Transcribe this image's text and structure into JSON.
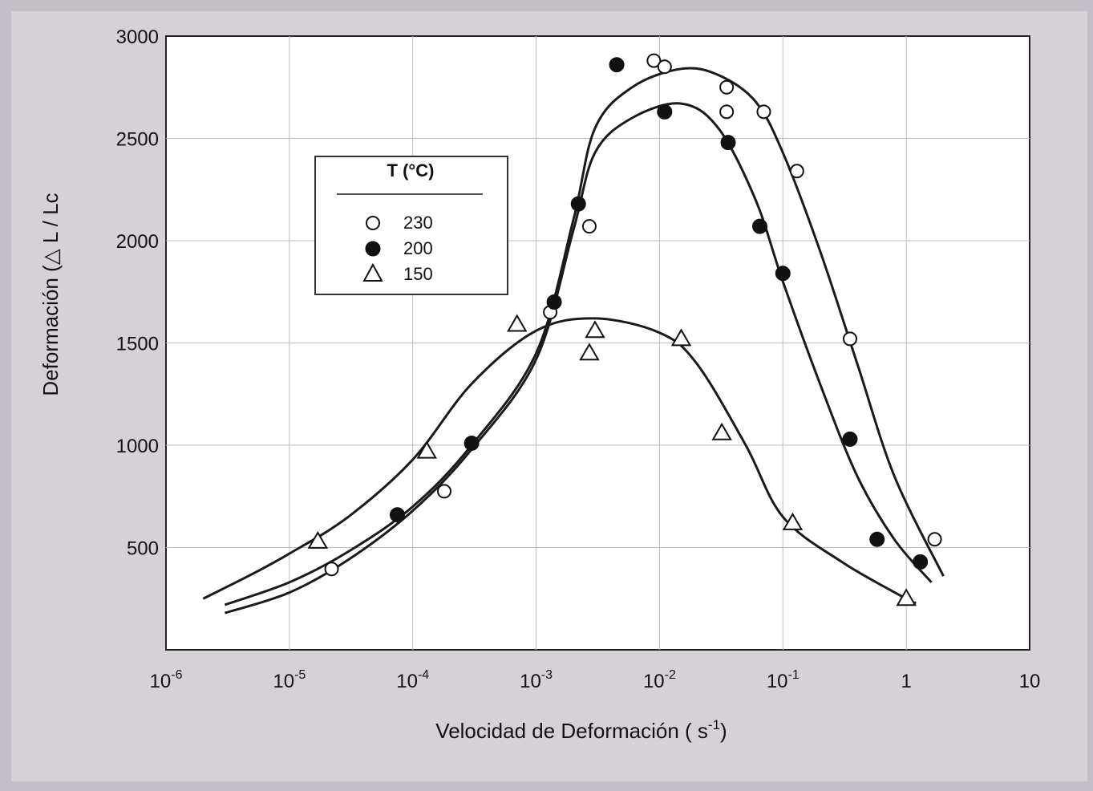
{
  "chart_data": {
    "type": "scatter",
    "title": "",
    "xlabel": "Velocidad de Deformación ( s",
    "xlabel_sup": "-1",
    "xlabel_tail": ")",
    "ylabel": "Deformación (△ L / Lc",
    "xscale": "log",
    "xlim": [
      1e-06,
      10
    ],
    "ylim": [
      0,
      3000
    ],
    "grid": true,
    "x_ticks": [
      {
        "value": 1e-06,
        "base": "10",
        "exp": "-6"
      },
      {
        "value": 1e-05,
        "base": "10",
        "exp": "-5"
      },
      {
        "value": 0.0001,
        "base": "10",
        "exp": "-4"
      },
      {
        "value": 0.001,
        "base": "10",
        "exp": "-3"
      },
      {
        "value": 0.01,
        "base": "10",
        "exp": "-2"
      },
      {
        "value": 0.1,
        "base": "10",
        "exp": "-1"
      },
      {
        "value": 1,
        "base": "1",
        "exp": ""
      },
      {
        "value": 10,
        "base": "10",
        "exp": ""
      }
    ],
    "y_ticks": [
      {
        "value": 500,
        "label": "500"
      },
      {
        "value": 1000,
        "label": "1000"
      },
      {
        "value": 1500,
        "label": "1500"
      },
      {
        "value": 2000,
        "label": "2000"
      },
      {
        "value": 2500,
        "label": "2500"
      },
      {
        "value": 3000,
        "label": "3000"
      }
    ],
    "legend": {
      "title": "T (°C)",
      "position": "upper-left",
      "entries": [
        {
          "label": "230",
          "marker": "open-circle"
        },
        {
          "label": "200",
          "marker": "filled-circle"
        },
        {
          "label": "150",
          "marker": "open-triangle"
        }
      ]
    },
    "series": [
      {
        "name": "230",
        "marker": "open-circle",
        "points": [
          [
            2.2e-05,
            395
          ],
          [
            0.00018,
            775
          ],
          [
            0.0013,
            1650
          ],
          [
            0.0027,
            2070
          ],
          [
            0.009,
            2880
          ],
          [
            0.011,
            2850
          ],
          [
            0.035,
            2750
          ],
          [
            0.035,
            2630
          ],
          [
            0.07,
            2630
          ],
          [
            0.13,
            2340
          ],
          [
            0.35,
            1520
          ],
          [
            1.7,
            540
          ]
        ],
        "curve": [
          [
            3e-06,
            220
          ],
          [
            1e-05,
            330
          ],
          [
            3e-05,
            480
          ],
          [
            0.0001,
            700
          ],
          [
            0.0003,
            1000
          ],
          [
            0.001,
            1450
          ],
          [
            0.002,
            2100
          ],
          [
            0.003,
            2550
          ],
          [
            0.006,
            2750
          ],
          [
            0.015,
            2840
          ],
          [
            0.03,
            2810
          ],
          [
            0.06,
            2680
          ],
          [
            0.1,
            2430
          ],
          [
            0.2,
            1950
          ],
          [
            0.4,
            1400
          ],
          [
            0.8,
            850
          ],
          [
            2,
            360
          ]
        ]
      },
      {
        "name": "200",
        "marker": "filled-circle",
        "points": [
          [
            7.5e-05,
            660
          ],
          [
            0.0003,
            1010
          ],
          [
            0.0014,
            1700
          ],
          [
            0.0022,
            2180
          ],
          [
            0.0045,
            2860
          ],
          [
            0.011,
            2630
          ],
          [
            0.036,
            2480
          ],
          [
            0.065,
            2070
          ],
          [
            0.1,
            1840
          ],
          [
            0.35,
            1030
          ],
          [
            0.58,
            540
          ],
          [
            1.3,
            430
          ]
        ],
        "curve": [
          [
            3e-06,
            180
          ],
          [
            1e-05,
            280
          ],
          [
            3e-05,
            440
          ],
          [
            0.0001,
            680
          ],
          [
            0.0003,
            980
          ],
          [
            0.001,
            1420
          ],
          [
            0.002,
            2050
          ],
          [
            0.003,
            2430
          ],
          [
            0.006,
            2600
          ],
          [
            0.015,
            2670
          ],
          [
            0.03,
            2550
          ],
          [
            0.06,
            2200
          ],
          [
            0.1,
            1800
          ],
          [
            0.2,
            1300
          ],
          [
            0.4,
            850
          ],
          [
            0.8,
            540
          ],
          [
            1.6,
            330
          ]
        ]
      },
      {
        "name": "150",
        "marker": "open-triangle",
        "points": [
          [
            1.7e-05,
            530
          ],
          [
            0.00013,
            970
          ],
          [
            0.0007,
            1590
          ],
          [
            0.0027,
            1450
          ],
          [
            0.003,
            1560
          ],
          [
            0.015,
            1520
          ],
          [
            0.032,
            1060
          ],
          [
            0.12,
            620
          ],
          [
            1,
            250
          ]
        ],
        "curve": [
          [
            2e-06,
            250
          ],
          [
            5e-06,
            370
          ],
          [
            1e-05,
            470
          ],
          [
            3e-05,
            650
          ],
          [
            0.0001,
            930
          ],
          [
            0.0003,
            1300
          ],
          [
            0.001,
            1560
          ],
          [
            0.003,
            1620
          ],
          [
            0.01,
            1550
          ],
          [
            0.02,
            1400
          ],
          [
            0.05,
            1000
          ],
          [
            0.1,
            650
          ],
          [
            0.3,
            430
          ],
          [
            1,
            250
          ],
          [
            1.2,
            230
          ]
        ]
      }
    ]
  }
}
